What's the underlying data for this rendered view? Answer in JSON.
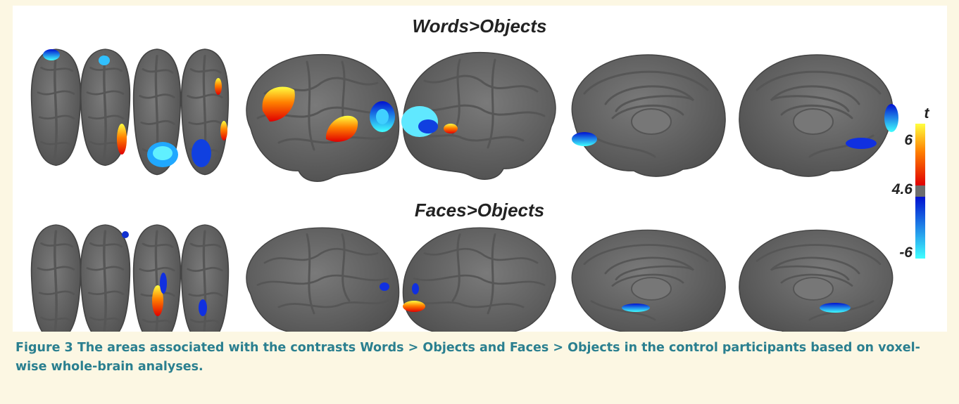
{
  "figure": {
    "panels": [
      {
        "title": "Words>Objects"
      },
      {
        "title": "Faces>Objects"
      }
    ],
    "colorbar": {
      "label": "t",
      "ticks": [
        "6",
        "4.6",
        "-6"
      ]
    },
    "caption": {
      "label": "Figure 3",
      "text": "The areas associated with the contrasts Words > Objects and Faces > Objects in the control participants based on voxel-wise whole-brain analyses."
    }
  }
}
